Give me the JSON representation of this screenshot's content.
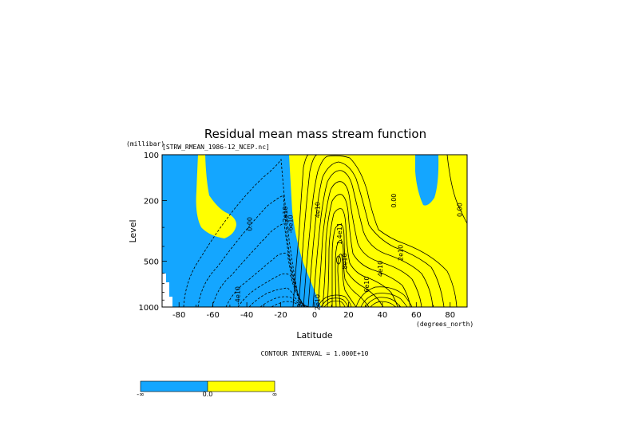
{
  "figure": {
    "title": "Residual mean mass stream function",
    "file_label": "[STRW_RMEAN_1986-12_NCEP.nc]",
    "units_label": "(millibar)",
    "contour_interval": "CONTOUR INTERVAL = 1.000E+10",
    "colors": {
      "negative": "#14a6ff",
      "positive": "#ffff00",
      "line": "#000000",
      "missing": "#ffffff"
    }
  },
  "chart_data": {
    "type": "heatmap",
    "title": "Residual mean mass stream function",
    "xlabel": "Latitude",
    "x_unit": "(degrees_north)",
    "ylabel": "Level",
    "y_unit": "(millibar)",
    "xlim": [
      -90,
      90
    ],
    "ylim": [
      1000,
      100
    ],
    "y_scale": "log",
    "x_ticks": [
      -80,
      -60,
      -40,
      -20,
      0,
      20,
      40,
      60,
      80
    ],
    "y_ticks": [
      100,
      200,
      500,
      1000
    ],
    "contour_interval": 10000000000.0,
    "contour_labels": [
      {
        "lat": -37,
        "lev": 285,
        "text": "0.00"
      },
      {
        "lat": -16,
        "lev": 250,
        "text": "-2e10"
      },
      {
        "lat": -13,
        "lev": 285,
        "text": "-6e10"
      },
      {
        "lat": -44,
        "lev": 840,
        "text": "-4e10"
      },
      {
        "lat": 3,
        "lev": 230,
        "text": "4e10"
      },
      {
        "lat": 16,
        "lev": 330,
        "text": "1.4e11"
      },
      {
        "lat": 19,
        "lev": 500,
        "text": "8e10"
      },
      {
        "lat": 48,
        "lev": 200,
        "text": "0.00"
      },
      {
        "lat": 52,
        "lev": 440,
        "text": "2e10"
      },
      {
        "lat": 40,
        "lev": 560,
        "text": "4e10"
      },
      {
        "lat": 32,
        "lev": 710,
        "text": "6e10"
      },
      {
        "lat": 3,
        "lev": 930,
        "text": "2e10"
      },
      {
        "lat": 87,
        "lev": 230,
        "text": "0.00"
      }
    ],
    "colorbar": {
      "labels": [
        "-∞",
        "0.0",
        "∞"
      ],
      "colors": [
        "#14a6ff",
        "#ffff00"
      ]
    }
  }
}
